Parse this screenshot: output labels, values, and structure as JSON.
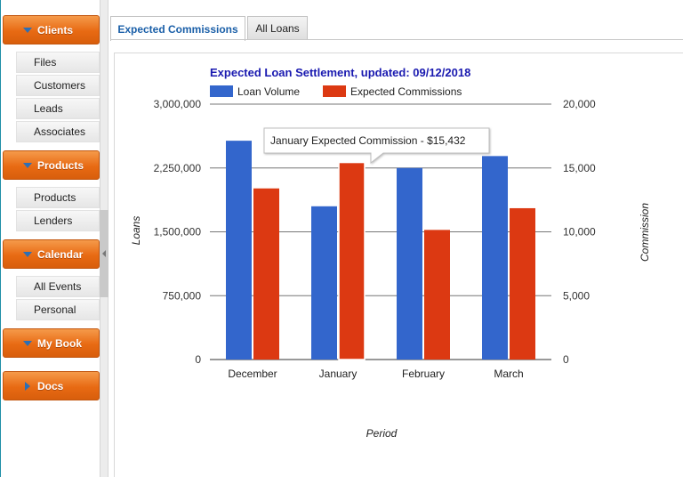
{
  "sidebar": {
    "groups": [
      {
        "label": "Clients",
        "items": [
          "Files",
          "Customers",
          "Leads",
          "Associates"
        ]
      },
      {
        "label": "Products",
        "items": [
          "Products",
          "Lenders"
        ]
      },
      {
        "label": "Calendar",
        "items": [
          "All Events",
          "Personal"
        ]
      },
      {
        "label": "My Book",
        "items": []
      },
      {
        "label": "Docs",
        "items": []
      }
    ]
  },
  "tabs": [
    {
      "label": "Expected Commissions",
      "active": true
    },
    {
      "label": "All Loans",
      "active": false
    }
  ],
  "colors": {
    "loan_volume": "#3366cc",
    "expected_commissions": "#dc3912",
    "title": "#1a1ab0",
    "accent_orange": "#e86a13"
  },
  "tooltip": {
    "text": "January Expected Commission - $15,432"
  },
  "chart_data": {
    "type": "bar",
    "title": "Expected Loan Settlement, updated: 09/12/2018",
    "categories": [
      "December",
      "January",
      "February",
      "March"
    ],
    "series": [
      {
        "name": "Loan Volume",
        "axis": "left",
        "values": [
          2570000,
          1800000,
          2250000,
          2390000
        ]
      },
      {
        "name": "Expected Commissions",
        "axis": "right",
        "values": [
          13400,
          15432,
          10150,
          11850
        ]
      }
    ],
    "xlabel": "Period",
    "ylabel": "Loans",
    "ylabel_right": "Commission",
    "ylim": [
      0,
      3000000
    ],
    "ylim_right": [
      0,
      20000
    ],
    "yticks": [
      "0",
      "750,000",
      "1,500,000",
      "2,250,000",
      "3,000,000"
    ],
    "yticks_right": [
      "0",
      "5,000",
      "10,000",
      "15,000",
      "20,000"
    ],
    "legend_position": "top",
    "grid": true
  }
}
